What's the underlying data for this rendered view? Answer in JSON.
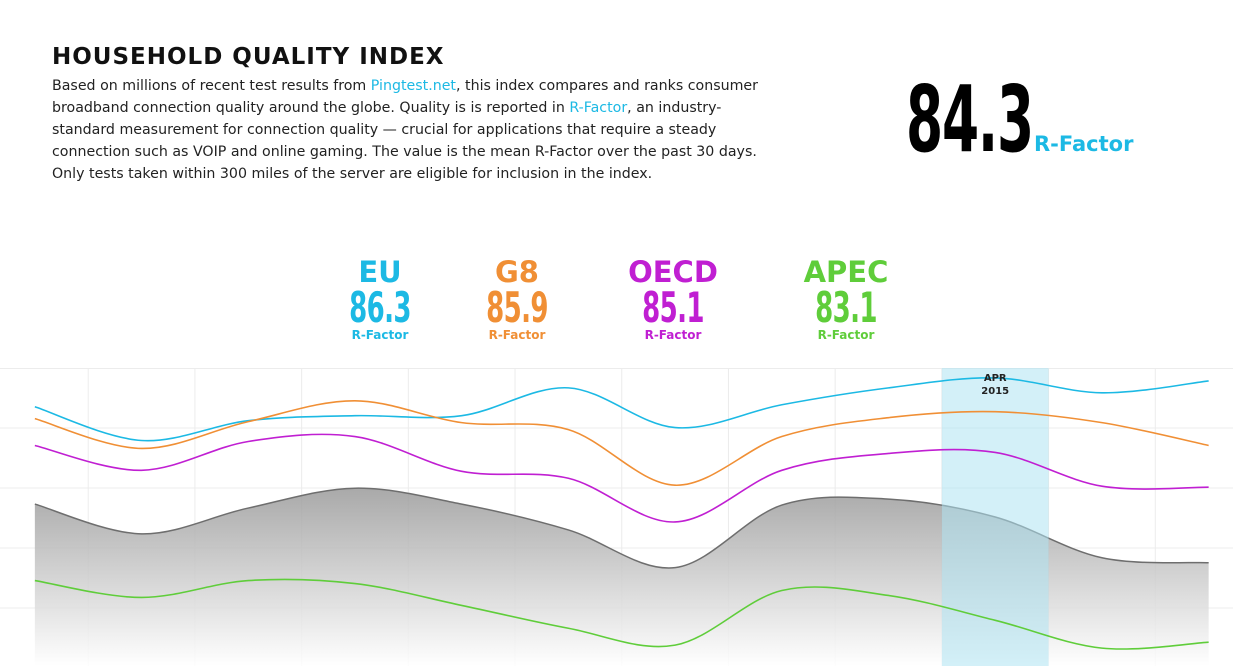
{
  "header": {
    "title": "HOUSEHOLD QUALITY INDEX",
    "description": [
      "Based on millions of recent test results from ",
      "Pingtest.net",
      ", this index compares and ranks consumer broadband connection quality around the globe. Quality is is reported in ",
      "R-Factor",
      ", an industry-standard measurement for connection quality — crucial for applications that require a steady connection such as VOIP and online gaming. The value is the mean R-Factor over the past 30 days. Only tests taken within 300 miles of the server are eligible for inclusion in the index."
    ]
  },
  "overall": {
    "value": 84.3,
    "unit": "R-Factor"
  },
  "groups": [
    {
      "name": "EU",
      "value": 86.3,
      "unit": "R-Factor"
    },
    {
      "name": "G8",
      "value": 85.9,
      "unit": "R-Factor"
    },
    {
      "name": "OECD",
      "value": 85.1,
      "unit": "R-Factor"
    },
    {
      "name": "APEC",
      "value": 83.1,
      "unit": "R-Factor"
    }
  ],
  "chart_data": {
    "type": "line",
    "categories": [
      null,
      null,
      null,
      null,
      null,
      null,
      null,
      null,
      null,
      "APR 2015",
      null,
      null
    ],
    "highlight": 9,
    "ylim": [
      60,
      90
    ],
    "series": [
      {
        "color": "#1cb9e4",
        "values": [
          86.1,
          82.7,
          84.7,
          85.2,
          85.2,
          88.0,
          84.0,
          86.3,
          88.0,
          89.0,
          87.5,
          88.7
        ]
      },
      {
        "color": "#f08f35",
        "values": [
          84.9,
          81.9,
          84.6,
          86.7,
          84.5,
          83.8,
          78.2,
          83.1,
          85.0,
          85.6,
          84.5,
          82.2
        ]
      },
      {
        "color": "#c01fd2",
        "values": [
          82.2,
          79.7,
          82.6,
          83.1,
          79.6,
          78.9,
          74.5,
          79.7,
          81.4,
          81.5,
          78.1,
          78.0
        ]
      },
      {
        "color": "#5fcd3a",
        "values": [
          68.6,
          66.9,
          68.6,
          68.3,
          66.1,
          63.8,
          62.1,
          67.6,
          67.1,
          64.6,
          61.8,
          62.4
        ]
      }
    ],
    "area": {
      "color": "#6e6e6e",
      "values": [
        76.3,
        73.3,
        75.9,
        77.9,
        76.3,
        73.7,
        69.9,
        76.2,
        76.8,
        75.0,
        70.9,
        70.4
      ]
    }
  }
}
